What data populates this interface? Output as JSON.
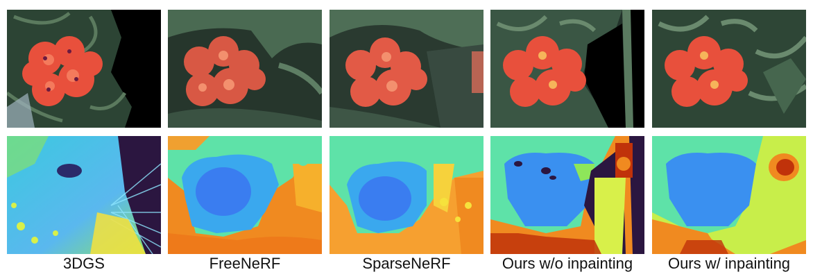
{
  "captions": {
    "col1": "3DGS",
    "col2": "FreeNeRF",
    "col3": "SparseNeRF",
    "col4": "Ours w/o inpainting",
    "col5": "Ours w/ inpainting"
  },
  "colors": {
    "foliage_dark": "#1c2a22",
    "foliage_mid": "#3d5a46",
    "flower": "#e8503c",
    "flower_light": "#f47a5c",
    "background": "#ffffff",
    "depth_blue": "#3a7df0",
    "depth_cyan": "#3cc8e0",
    "depth_green": "#8ee65a",
    "depth_yellow": "#f6e23c",
    "depth_orange": "#f08a20",
    "depth_red": "#c0320a",
    "void_purple": "#2b1640"
  }
}
